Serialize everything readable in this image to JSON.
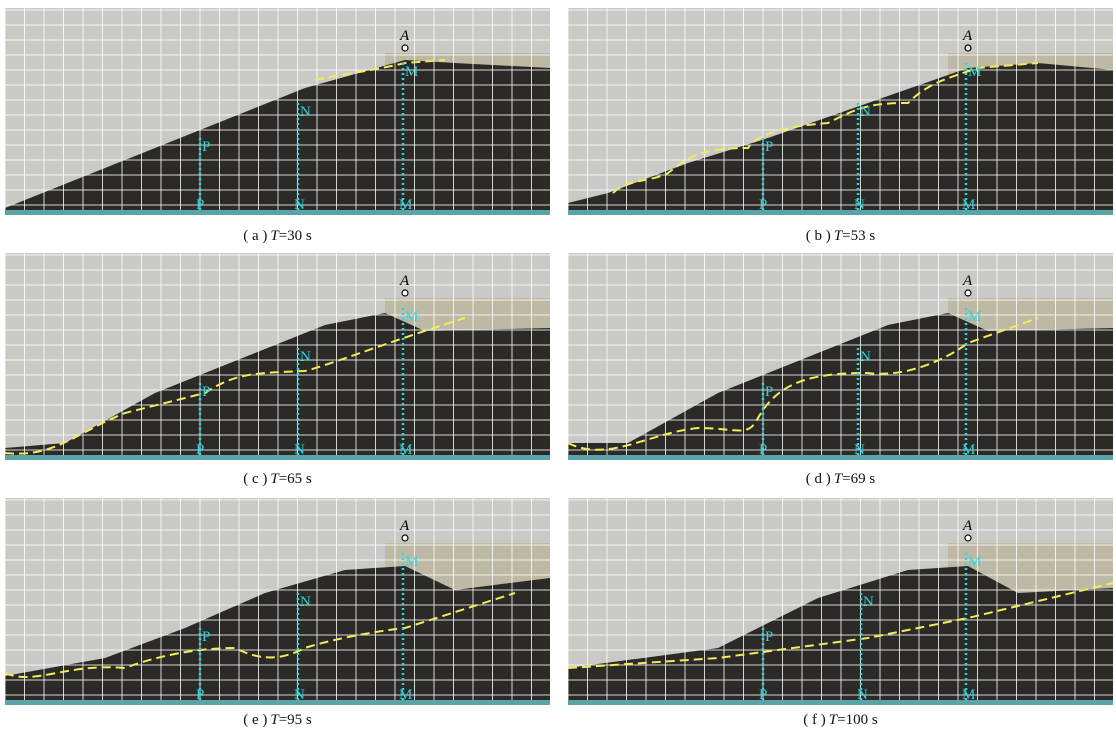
{
  "labels": {
    "p": "P",
    "n": "N",
    "m": "M",
    "a": "A"
  },
  "panels": [
    {
      "letter": "( a )",
      "symbol": "T",
      "time": "=30 s"
    },
    {
      "letter": "( b )",
      "symbol": "T",
      "time": "=53 s"
    },
    {
      "letter": "( c )",
      "symbol": "T",
      "time": "=65 s"
    },
    {
      "letter": "( d )",
      "symbol": "T",
      "time": "=69 s"
    },
    {
      "letter": "( e )",
      "symbol": "T",
      "time": "=95 s"
    },
    {
      "letter": "( f )",
      "symbol": "T",
      "time": "=100 s"
    }
  ]
}
